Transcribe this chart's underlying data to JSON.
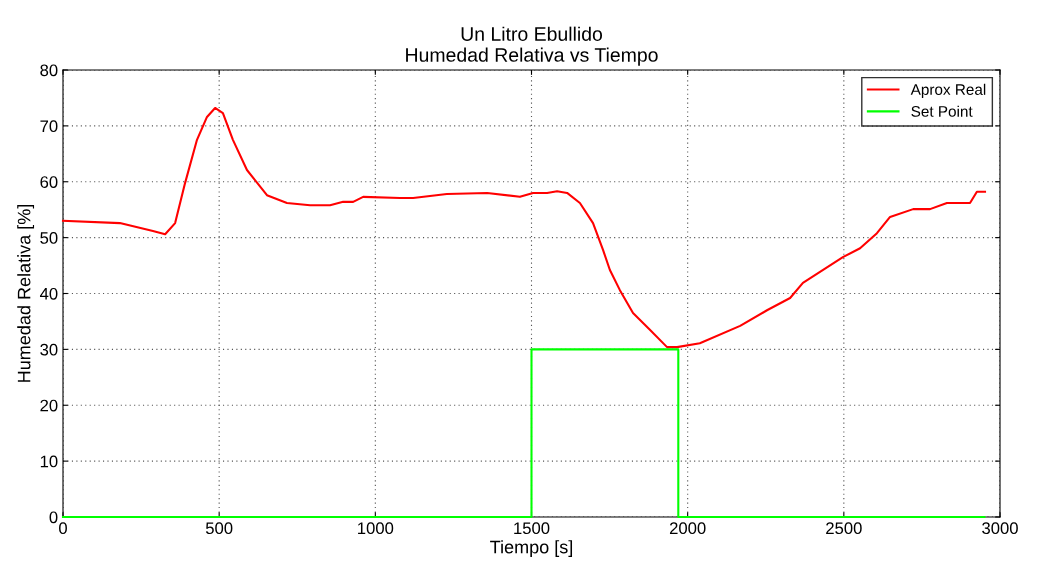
{
  "chart_data": {
    "type": "line",
    "title": "Un Litro Ebullido\nHumedad Relativa vs Tiempo",
    "xlabel": "Tiempo [s]",
    "ylabel": "Humedad Relativa [%]",
    "xlim": [
      0,
      3000
    ],
    "ylim": [
      0,
      80
    ],
    "xticks": [
      0,
      500,
      1000,
      1500,
      2000,
      2500,
      3000
    ],
    "yticks": [
      0,
      10,
      20,
      30,
      40,
      50,
      60,
      70,
      80
    ],
    "grid": true,
    "legend": "top right",
    "marker": "none",
    "line_style": "solid",
    "series": [
      {
        "name": "Aprox Real",
        "color": "#ff0000",
        "x": [
          0,
          182,
          288,
          327,
          359,
          391,
          429,
          461,
          487,
          512,
          544,
          589,
          653,
          717,
          791,
          855,
          897,
          929,
          961,
          1079,
          1121,
          1229,
          1358,
          1463,
          1505,
          1550,
          1582,
          1614,
          1655,
          1697,
          1729,
          1751,
          1783,
          1825,
          1879,
          1934,
          1966,
          2039,
          2168,
          2254,
          2328,
          2369,
          2497,
          2552,
          2606,
          2648,
          2722,
          2776,
          2830,
          2904,
          2926,
          2952
        ],
        "values": [
          53.0,
          52.6,
          51.2,
          50.6,
          52.6,
          59.8,
          67.5,
          71.6,
          73.2,
          72.3,
          67.5,
          62.1,
          57.6,
          56.2,
          55.8,
          55.8,
          56.4,
          56.4,
          57.3,
          57.1,
          57.1,
          57.8,
          58.0,
          57.3,
          58.0,
          58.0,
          58.3,
          58.0,
          56.2,
          52.6,
          47.8,
          44.2,
          40.6,
          36.5,
          33.5,
          30.4,
          30.4,
          31.1,
          34.2,
          37.0,
          39.2,
          41.9,
          46.5,
          48.1,
          50.8,
          53.7,
          55.1,
          55.1,
          56.2,
          56.2,
          58.2,
          58.2
        ]
      },
      {
        "name": "Set Point",
        "color": "#00ff00",
        "x": [
          0,
          1500,
          1500,
          1970,
          1970,
          2950
        ],
        "values": [
          0,
          0,
          30,
          30,
          0,
          0
        ]
      }
    ]
  }
}
